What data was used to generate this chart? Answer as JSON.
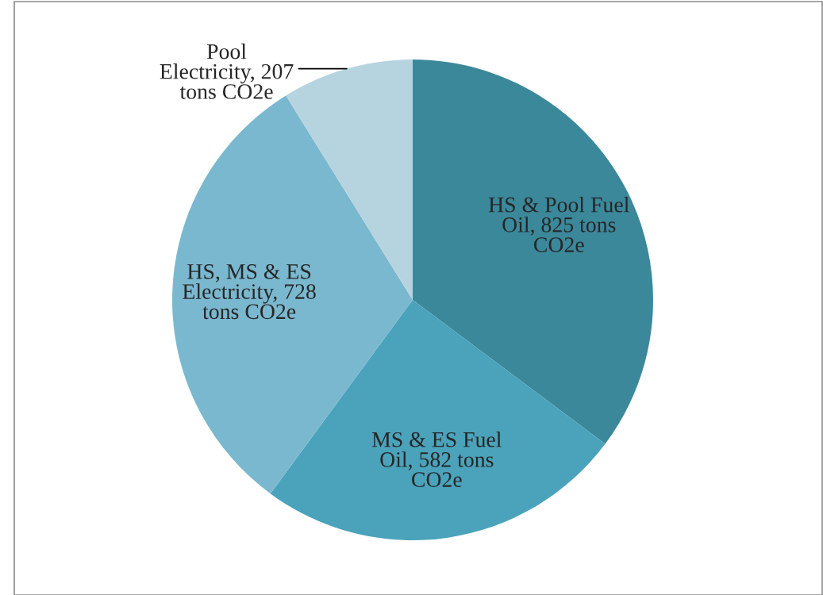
{
  "chart_data": {
    "type": "pie",
    "categories": [
      "HS & Pool Fuel Oil",
      "MS & ES Fuel Oil",
      "HS, MS & ES Electricity",
      "Pool Electricity"
    ],
    "values": [
      825,
      582,
      728,
      207
    ],
    "colors": [
      "#3b889b",
      "#4aa3bb",
      "#7ab8cf",
      "#b6d4df"
    ],
    "value_labels": [
      "825 tons CO2e",
      "582 tons CO2e",
      "728 tons CO2e",
      "207 tons CO2e"
    ],
    "legend": false
  }
}
